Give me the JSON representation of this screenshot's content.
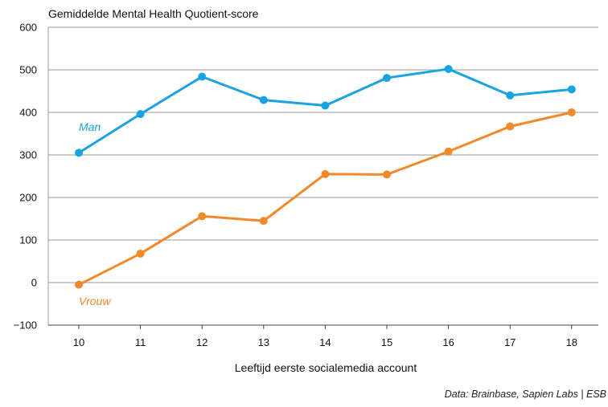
{
  "chart_data": {
    "type": "line",
    "ylabel": "Gemiddelde Mental Health Quotient-score",
    "xlabel": "Leeftijd eerste socialemedia account",
    "x": [
      10,
      11,
      12,
      13,
      14,
      15,
      16,
      17,
      18
    ],
    "ylim": [
      -100,
      600
    ],
    "yticks": [
      -100,
      0,
      100,
      200,
      300,
      400,
      500,
      600
    ],
    "grid": "horizontal",
    "series": [
      {
        "name": "Man",
        "color": "#1aa3e0",
        "values": [
          305,
          396,
          484,
          429,
          416,
          481,
          502,
          440,
          454
        ]
      },
      {
        "name": "Vrouw",
        "color": "#f0892a",
        "values": [
          -5,
          68,
          156,
          145,
          255,
          254,
          308,
          367,
          400
        ]
      }
    ],
    "source": "Data: Brainbase, Sapien Labs | ESB"
  }
}
